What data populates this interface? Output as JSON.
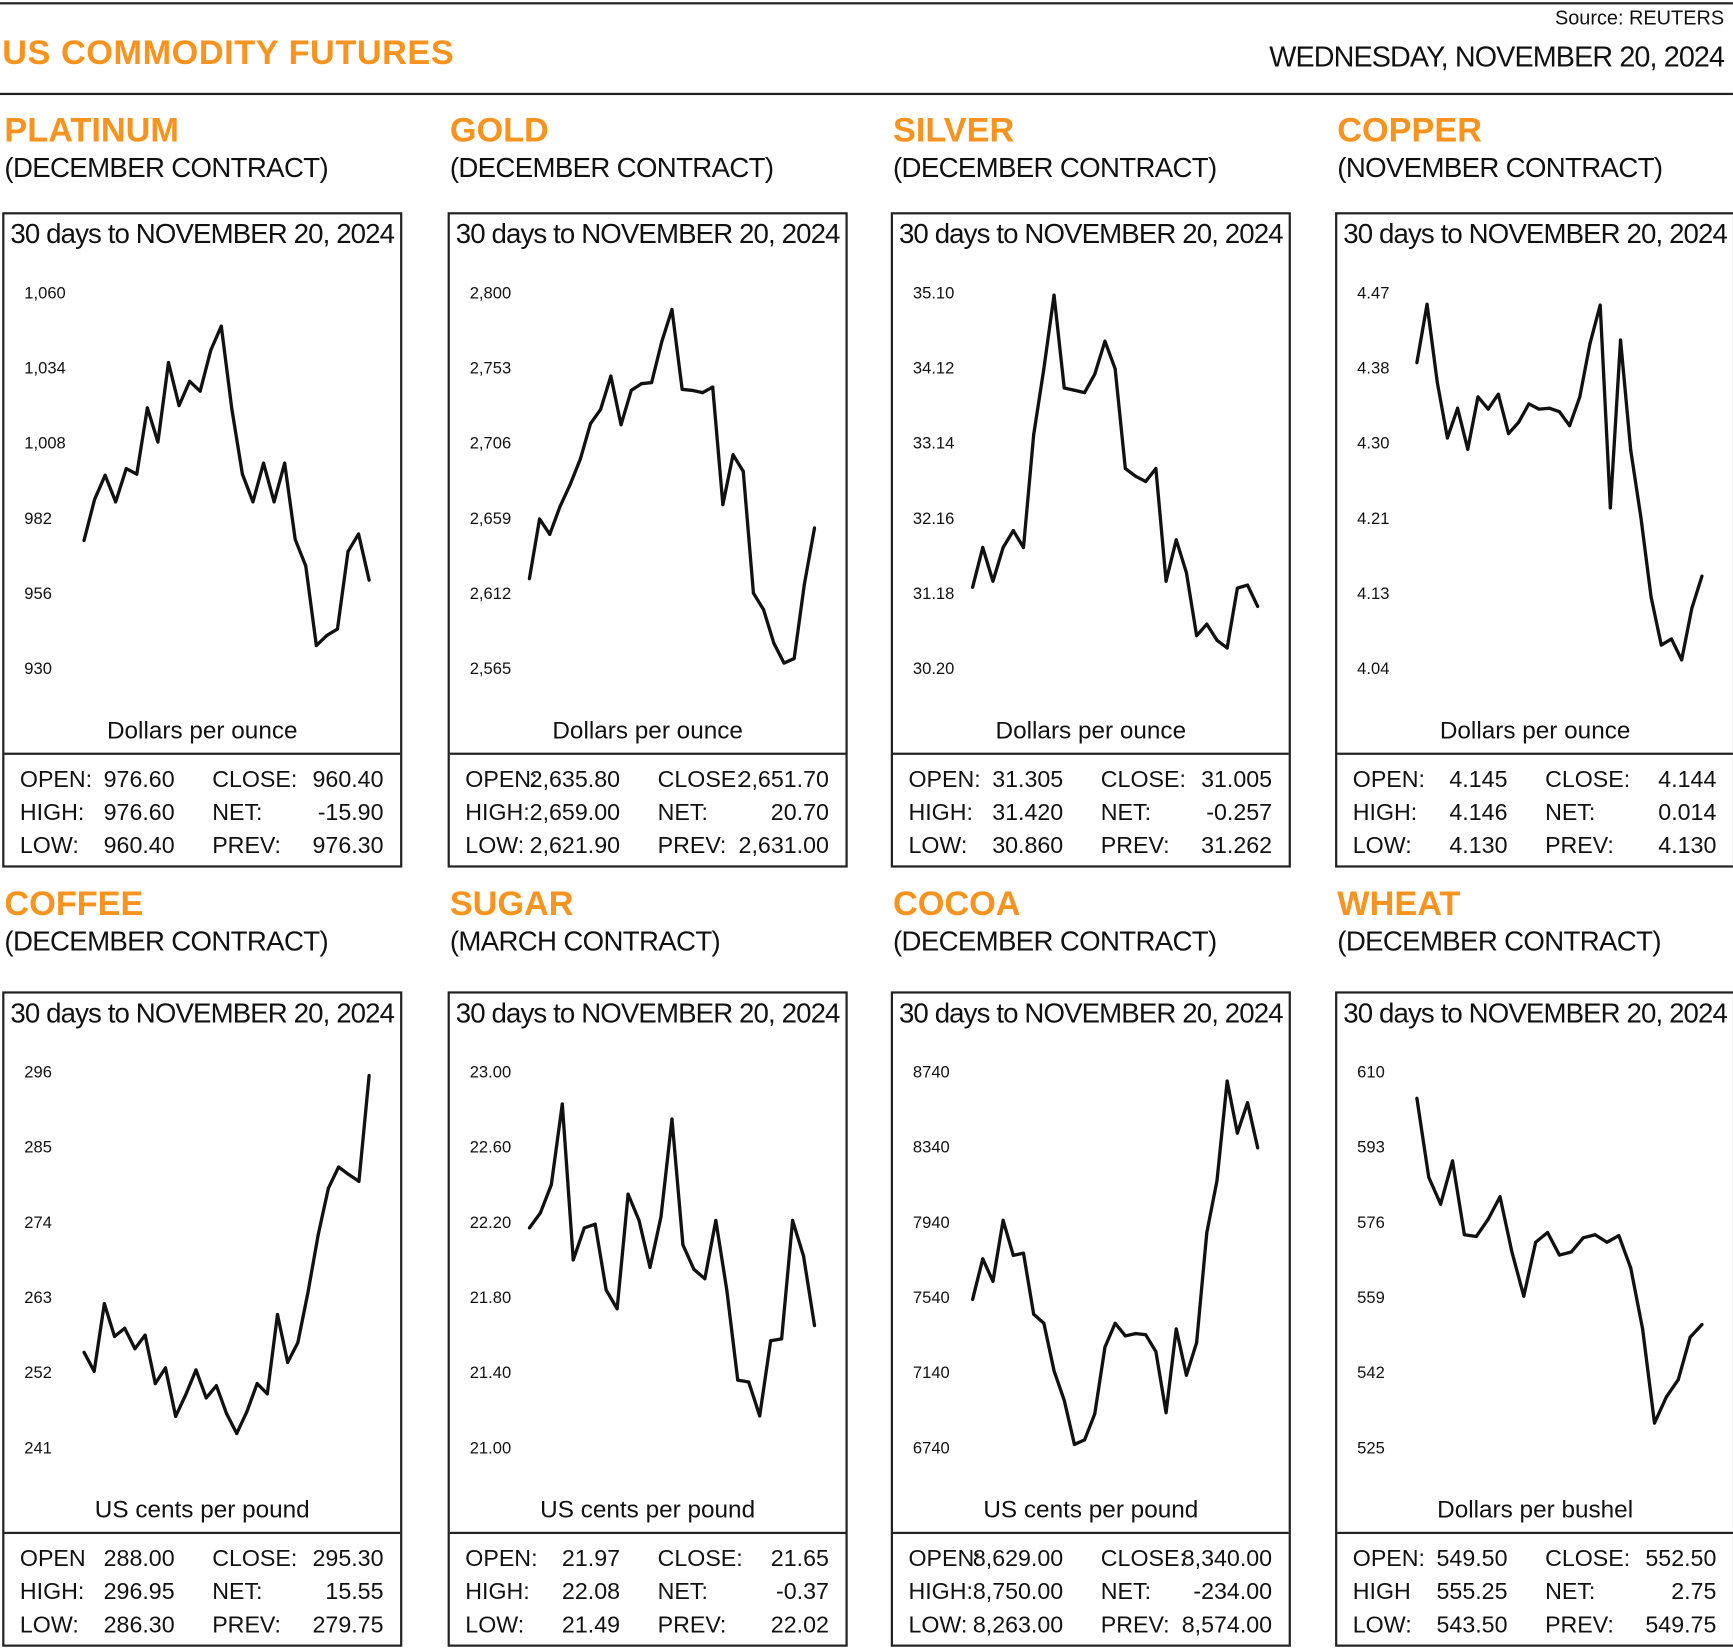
{
  "header": {
    "title": "US COMMODITY FUTURES",
    "source": "Source: REUTERS",
    "date": "WEDNESDAY, NOVEMBER 20, 2024"
  },
  "chart_data": [
    {
      "type": "line",
      "name": "PLATINUM",
      "contract": "(DECEMBER CONTRACT)",
      "subtitle": "30 days to NOVEMBER 20, 2024",
      "ylabel": "Dollars per ounce",
      "yticks": [
        "1,060",
        "1,034",
        "1,008",
        "982",
        "956",
        "930"
      ],
      "ylim": [
        930,
        1060
      ],
      "values": [
        974.3,
        988.5,
        996.9,
        987.7,
        999.2,
        997.3,
        1020.2,
        1008.4,
        1035.9,
        1021,
        1029.4,
        1026,
        1040.1,
        1048.5,
        1019.8,
        997.3,
        987.7,
        1001.1,
        987.7,
        1001.1,
        974.7,
        965.5,
        938,
        941.5,
        943.7,
        970.5,
        976.6,
        960.6
      ],
      "stats": [
        [
          "OPEN:",
          "976.60",
          "CLOSE:",
          "960.40"
        ],
        [
          "HIGH:",
          "976.60",
          "NET:",
          "-15.90"
        ],
        [
          "LOW:",
          "960.40",
          "PREV:",
          "976.30"
        ]
      ]
    },
    {
      "type": "line",
      "name": "GOLD",
      "contract": "(DECEMBER CONTRACT)",
      "subtitle": "30 days to NOVEMBER 20, 2024",
      "ylabel": "Dollars per ounce",
      "yticks": [
        "2,800",
        "2,753",
        "2,706",
        "2,659",
        "2,612",
        "2,565"
      ],
      "ylim": [
        2565,
        2800
      ],
      "values": [
        2621.2,
        2658.6,
        2649,
        2666.3,
        2680.1,
        2696,
        2718.2,
        2727.2,
        2748,
        2717.5,
        2739,
        2743.2,
        2743.9,
        2769.5,
        2789.6,
        2739.7,
        2739,
        2737.6,
        2741.1,
        2667.6,
        2698.8,
        2688.4,
        2612.2,
        2601.8,
        2581,
        2568.5,
        2571.3,
        2617.7,
        2653.1
      ],
      "stats": [
        [
          "OPEN:",
          "2,635.80",
          "CLOSE:",
          "2,651.70"
        ],
        [
          "HIGH:",
          "2,659.00",
          "NET:",
          "20.70"
        ],
        [
          "LOW:",
          "2,621.90",
          "PREV:",
          "2,631.00"
        ]
      ]
    },
    {
      "type": "line",
      "name": "SILVER",
      "contract": "(DECEMBER CONTRACT)",
      "subtitle": "30 days to NOVEMBER 20, 2024",
      "ylabel": "Dollars per ounce",
      "yticks": [
        "35.10",
        "34.12",
        "33.14",
        "32.16",
        "31.18",
        "30.20"
      ],
      "ylim": [
        30.2,
        35.1
      ],
      "values": [
        31.26,
        31.78,
        31.34,
        31.78,
        32.0,
        31.78,
        33.25,
        34.11,
        35.07,
        33.86,
        33.83,
        33.8,
        34.04,
        34.47,
        34.11,
        32.81,
        32.71,
        32.64,
        32.81,
        31.34,
        31.88,
        31.45,
        30.63,
        30.78,
        30.57,
        30.47,
        31.25,
        31.29,
        31.01
      ],
      "stats": [
        [
          "OPEN:",
          "31.305",
          "CLOSE:",
          "31.005"
        ],
        [
          "HIGH:",
          "31.420",
          "NET:",
          "-0.257"
        ],
        [
          "LOW:",
          "30.860",
          "PREV:",
          "31.262"
        ]
      ]
    },
    {
      "type": "line",
      "name": "COPPER",
      "contract": "(NOVEMBER CONTRACT)",
      "subtitle": "30 days to NOVEMBER 20, 2024",
      "ylabel": "Dollars per ounce",
      "yticks": [
        "4.47",
        "4.38",
        "4.30",
        "4.21",
        "4.13",
        "4.04"
      ],
      "ylim": [
        4.04,
        4.47
      ],
      "values": [
        4.39,
        4.457,
        4.368,
        4.304,
        4.338,
        4.291,
        4.351,
        4.337,
        4.354,
        4.309,
        4.322,
        4.343,
        4.337,
        4.338,
        4.334,
        4.318,
        4.351,
        4.412,
        4.456,
        4.224,
        4.416,
        4.29,
        4.213,
        4.122,
        4.067,
        4.074,
        4.05,
        4.109,
        4.146
      ],
      "stats": [
        [
          "OPEN:",
          "4.145",
          "CLOSE:",
          "4.144"
        ],
        [
          "HIGH:",
          "4.146",
          "NET:",
          "0.014"
        ],
        [
          "LOW:",
          "4.130",
          "PREV:",
          "4.130"
        ]
      ]
    },
    {
      "type": "line",
      "name": "COFFEE",
      "contract": "(DECEMBER CONTRACT)",
      "subtitle": "30 days to NOVEMBER 20, 2024",
      "ylabel": "US cents per pound",
      "yticks": [
        "296",
        "285",
        "274",
        "263",
        "252",
        "241"
      ],
      "ylim": [
        241,
        296
      ],
      "values": [
        255,
        252.2,
        262.1,
        257.3,
        258.5,
        255.5,
        257.5,
        250.4,
        252.7,
        245.6,
        248.8,
        252.4,
        248.3,
        250.1,
        246,
        243.1,
        246.3,
        250.4,
        248.9,
        260.5,
        253.5,
        256.4,
        263.8,
        272.2,
        279,
        282.1,
        281,
        280,
        295.5
      ],
      "stats": [
        [
          "OPEN",
          "288.00",
          "CLOSE:",
          "295.30"
        ],
        [
          "HIGH:",
          "296.95",
          "NET:",
          "15.55"
        ],
        [
          "LOW:",
          "286.30",
          "PREV:",
          "279.75"
        ]
      ]
    },
    {
      "type": "line",
      "name": "SUGAR",
      "contract": "(MARCH CONTRACT)",
      "subtitle": "30 days to NOVEMBER 20, 2024",
      "ylabel": "US cents per pound",
      "yticks": [
        "23.00",
        "22.60",
        "22.20",
        "21.80",
        "21.40",
        "21.00"
      ],
      "ylim": [
        21,
        23
      ],
      "values": [
        22.17,
        22.25,
        22.4,
        22.83,
        22.0,
        22.17,
        22.19,
        21.84,
        21.74,
        22.35,
        22.21,
        21.96,
        22.23,
        22.75,
        22.08,
        21.95,
        21.9,
        22.21,
        21.84,
        21.36,
        21.35,
        21.17,
        21.57,
        21.58,
        22.21,
        22.02,
        21.65
      ],
      "stats": [
        [
          "OPEN:",
          "21.97",
          "CLOSE:",
          "21.65"
        ],
        [
          "HIGH:",
          "22.08",
          "NET:",
          "-0.37"
        ],
        [
          "LOW:",
          "21.49",
          "PREV:",
          "22.02"
        ]
      ]
    },
    {
      "type": "line",
      "name": "COCOA",
      "contract": "(DECEMBER CONTRACT)",
      "subtitle": "30 days to NOVEMBER 20, 2024",
      "ylabel": "US cents per pound",
      "yticks": [
        "8740",
        "8340",
        "7940",
        "7540",
        "7140",
        "6740"
      ],
      "ylim": [
        6740,
        8740
      ],
      "values": [
        7529,
        7746,
        7626,
        7951,
        7764,
        7776,
        7451,
        7403,
        7150,
        6993,
        6758,
        6782,
        6921,
        7276,
        7403,
        7336,
        7348,
        7342,
        7252,
        6927,
        7373,
        7126,
        7300,
        7885,
        8162,
        8692,
        8415,
        8577,
        8336
      ],
      "stats": [
        [
          "OPEN:",
          "8,629.00",
          "CLOSE:",
          "8,340.00"
        ],
        [
          "HIGH:",
          "8,750.00",
          "NET:",
          "-234.00"
        ],
        [
          "LOW:",
          "8,263.00",
          "PREV:",
          "8,574.00"
        ]
      ]
    },
    {
      "type": "line",
      "name": "WHEAT",
      "contract": "(DECEMBER CONTRACT)",
      "subtitle": "30 days to NOVEMBER 20, 2024",
      "ylabel": "Dollars per bushel",
      "yticks": [
        "610",
        "593",
        "576",
        "559",
        "542",
        "525"
      ],
      "ylim": [
        525,
        610
      ],
      "values": [
        604.1,
        586.2,
        580.1,
        589.9,
        573.2,
        572.8,
        576.7,
        581.8,
        569.3,
        559.3,
        571.5,
        573.7,
        568.6,
        569.3,
        572.5,
        573.2,
        571.5,
        573,
        565.7,
        551.9,
        530.6,
        536.5,
        540.4,
        550,
        552.9
      ],
      "stats": [
        [
          "OPEN:",
          "549.50",
          "CLOSE:",
          "552.50"
        ],
        [
          "HIGH",
          "555.25",
          "NET:",
          "2.75"
        ],
        [
          "LOW:",
          "543.50",
          "PREV:",
          "549.75"
        ]
      ]
    }
  ]
}
